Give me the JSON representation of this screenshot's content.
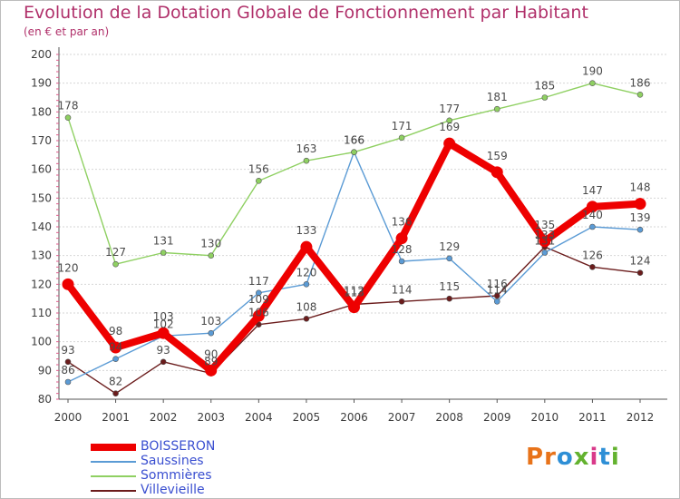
{
  "header": {
    "title": "Evolution de la Dotation Globale de Fonctionnement par Habitant",
    "subtitle": "(en € et par an)"
  },
  "brand": {
    "text": "Proxiti",
    "colors": [
      "#e8731a",
      "#e8731a",
      "#2e8fd6",
      "#63b22f",
      "#d93a8a",
      "#2e8fd6",
      "#63b22f"
    ]
  },
  "chart_data": {
    "type": "line",
    "title": "Evolution de la Dotation Globale de Fonctionnement par Habitant",
    "subtitle": "(en € et par an)",
    "xlabel": "",
    "ylabel": "",
    "x": [
      2000,
      2001,
      2002,
      2003,
      2004,
      2005,
      2006,
      2007,
      2008,
      2009,
      2010,
      2011,
      2012
    ],
    "ylim": [
      80,
      200
    ],
    "yticks": [
      80,
      90,
      100,
      110,
      120,
      130,
      140,
      150,
      160,
      170,
      180,
      190,
      200
    ],
    "grid": "horizontal",
    "legend_position": "bottom-left",
    "series": [
      {
        "name": "BOISSERON",
        "color": "#ee0000",
        "values": [
          120,
          98,
          103,
          90,
          109,
          133,
          112,
          136,
          169,
          159,
          135,
          147,
          148
        ]
      },
      {
        "name": "Saussines",
        "color": "#5b9bd5",
        "values": [
          86,
          94,
          102,
          103,
          117,
          120,
          166,
          128,
          129,
          114,
          131,
          140,
          139
        ]
      },
      {
        "name": "Sommières",
        "color": "#8fd062",
        "values": [
          178,
          127,
          131,
          130,
          156,
          163,
          166,
          171,
          177,
          181,
          185,
          190,
          186
        ]
      },
      {
        "name": "Villevieille",
        "color": "#6b1c1c",
        "values": [
          93,
          82,
          93,
          89,
          106,
          108,
          113,
          114,
          115,
          116,
          133,
          126,
          124
        ]
      }
    ]
  }
}
